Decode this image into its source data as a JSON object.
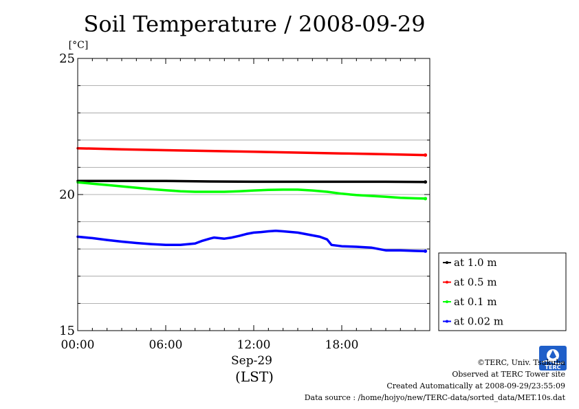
{
  "chart_data": {
    "type": "line",
    "title": "Soil Temperature / 2008-09-29",
    "ylabel": "[°C]",
    "ylim": [
      15,
      25
    ],
    "y_ticks": [
      15,
      20,
      25
    ],
    "y_minor_step": 1,
    "xlim": [
      0,
      24
    ],
    "x_ticks": [
      {
        "value": 0,
        "label": "00:00"
      },
      {
        "value": 6,
        "label": "06:00"
      },
      {
        "value": 12,
        "label": "12:00"
      },
      {
        "value": 18,
        "label": "18:00"
      }
    ],
    "x_date_label": "Sep-29",
    "x_unit_label": "(LST)",
    "grid": true,
    "legend_position": "right-bottom",
    "series": [
      {
        "name": "at 1.0 m",
        "color": "#000000",
        "x": [
          0,
          3,
          6,
          9,
          12,
          15,
          18,
          21,
          23.7
        ],
        "y": [
          20.5,
          20.5,
          20.5,
          20.48,
          20.47,
          20.47,
          20.47,
          20.47,
          20.46
        ]
      },
      {
        "name": "at 0.5 m",
        "color": "#ff0000",
        "x": [
          0,
          3,
          6,
          9,
          12,
          15,
          18,
          21,
          23.7
        ],
        "y": [
          21.7,
          21.66,
          21.63,
          21.6,
          21.57,
          21.54,
          21.51,
          21.48,
          21.45
        ]
      },
      {
        "name": "at 0.1 m",
        "color": "#00ff00",
        "x": [
          0,
          1,
          2,
          3,
          4,
          5,
          6,
          7,
          8,
          9,
          10,
          11,
          12,
          13,
          14,
          15,
          16,
          17,
          18,
          19,
          20,
          21,
          22,
          23,
          23.7
        ],
        "y": [
          20.45,
          20.4,
          20.35,
          20.3,
          20.25,
          20.2,
          20.16,
          20.12,
          20.1,
          20.1,
          20.1,
          20.12,
          20.15,
          20.17,
          20.18,
          20.18,
          20.15,
          20.1,
          20.03,
          19.98,
          19.95,
          19.92,
          19.88,
          19.86,
          19.85
        ]
      },
      {
        "name": "at 0.02 m",
        "color": "#0000ff",
        "x": [
          0,
          1,
          2,
          3,
          4,
          5,
          6,
          7,
          8,
          8.5,
          9,
          9.3,
          10,
          10.5,
          11,
          11.5,
          12,
          12.5,
          13,
          13.5,
          14,
          15,
          16,
          16.5,
          17,
          17.3,
          18,
          19,
          20,
          20.5,
          21,
          22,
          23,
          23.7
        ],
        "y": [
          18.45,
          18.4,
          18.33,
          18.27,
          18.22,
          18.18,
          18.15,
          18.15,
          18.2,
          18.3,
          18.38,
          18.42,
          18.38,
          18.42,
          18.48,
          18.55,
          18.6,
          18.62,
          18.65,
          18.67,
          18.65,
          18.6,
          18.5,
          18.45,
          18.35,
          18.15,
          18.1,
          18.08,
          18.05,
          18.0,
          17.95,
          17.95,
          17.93,
          17.92
        ]
      }
    ]
  },
  "credits": {
    "copyright": "©TERC, Univ. Tsukuba",
    "site": "Observed at TERC Tower site",
    "created": "Created Automatically at 2008-09-29/23:55:09",
    "source": "Data source : /home/hojyo/new/TERC-data/sorted_data/MET.10s.dat"
  },
  "logo": {
    "icon": "terc-logo-icon",
    "text": "TERC",
    "color": "#1f5fc9"
  }
}
